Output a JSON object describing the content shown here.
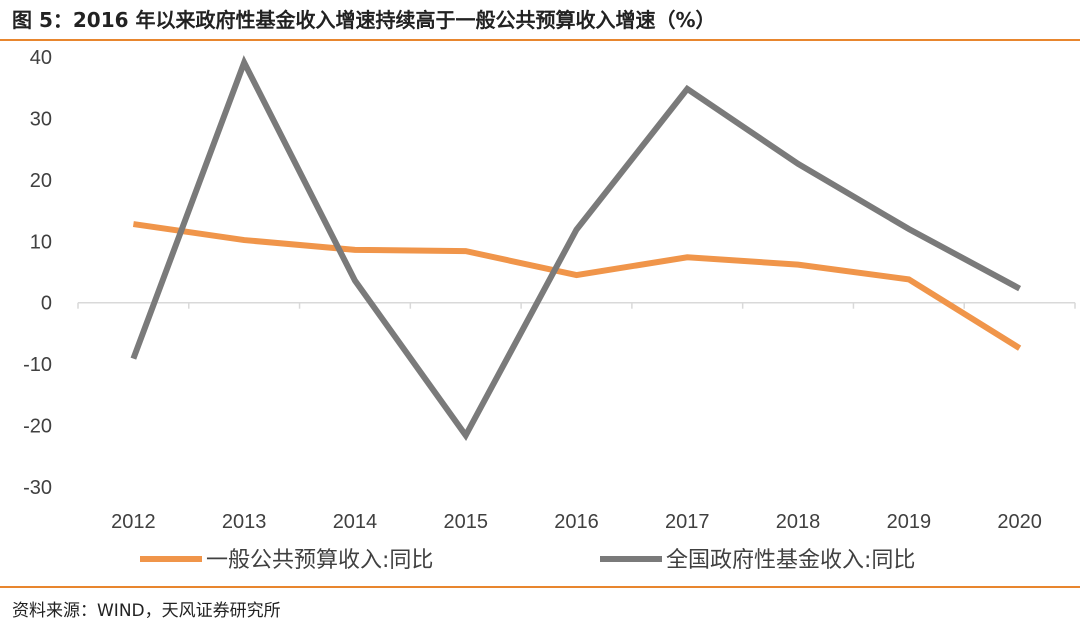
{
  "title": "图 5：2016 年以来政府性基金收入增速持续高于一般公共预算收入增速（%）",
  "source": "资料来源：WIND，天风证券研究所",
  "colors": {
    "accent": "#e8862e",
    "series1": "#f0954a",
    "series2": "#7a7a7a",
    "axis": "#d9d9d9"
  },
  "chart_data": {
    "type": "line",
    "categories": [
      "2012",
      "2013",
      "2014",
      "2015",
      "2016",
      "2017",
      "2018",
      "2019",
      "2020"
    ],
    "series": [
      {
        "name": "一般公共预算收入:同比",
        "values": [
          12.8,
          10.2,
          8.6,
          8.4,
          4.5,
          7.4,
          6.2,
          3.8,
          -7.4
        ]
      },
      {
        "name": "全国政府性基金收入:同比",
        "values": [
          -9.1,
          39.1,
          3.6,
          -21.6,
          11.9,
          34.8,
          22.6,
          12.0,
          2.3
        ]
      }
    ],
    "ylim": [
      -30,
      40
    ],
    "yticks": [
      "-30",
      "-20",
      "-10",
      "0",
      "10",
      "20",
      "30",
      "40"
    ],
    "legend_position": "bottom",
    "grid": false
  }
}
